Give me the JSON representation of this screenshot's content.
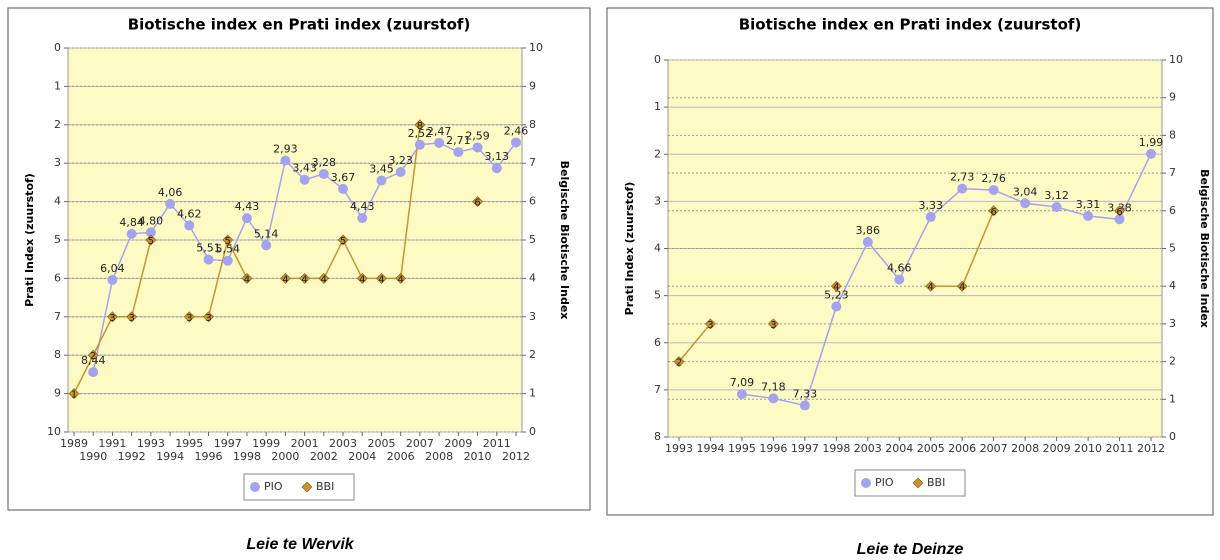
{
  "chart_data": [
    {
      "type": "line",
      "title": "Biotische index en Prati index (zuurstof)",
      "caption": "Leie  te Wervik",
      "categories": [
        "1989",
        "1990",
        "1991",
        "1992",
        "1993",
        "1994",
        "1995",
        "1996",
        "1997",
        "1998",
        "1999",
        "2000",
        "2001",
        "2002",
        "2003",
        "2004",
        "2005",
        "2006",
        "2007",
        "2008",
        "2009",
        "2010",
        "2011",
        "2012"
      ],
      "y_label": "Prati Index (zuurstof)",
      "y2_label": "Belgische Biotische Index",
      "ylim": [
        10,
        0
      ],
      "yticks": [
        0,
        1,
        2,
        3,
        4,
        5,
        6,
        7,
        8,
        9,
        10
      ],
      "y2lim": [
        0,
        10
      ],
      "y2ticks": [
        0,
        1,
        2,
        3,
        4,
        5,
        6,
        7,
        8,
        9,
        10
      ],
      "grid": true,
      "series": [
        {
          "name": "PIO",
          "color": "#a3a3f0",
          "marker": "circle",
          "values": [
            null,
            8.44,
            6.04,
            4.84,
            4.8,
            4.06,
            4.62,
            5.51,
            5.54,
            4.43,
            5.14,
            2.93,
            3.43,
            3.28,
            3.67,
            4.43,
            3.45,
            3.23,
            2.52,
            2.47,
            2.71,
            2.59,
            3.13,
            2.46
          ],
          "value_labels": [
            null,
            "8,44",
            "6,04",
            "4,84",
            "4,80",
            "4,06",
            "4,62",
            "5,51",
            "5,54",
            "4,43",
            "5,14",
            "2,93",
            "3,43",
            "3,28",
            "3,67",
            "4,43",
            "3,45",
            "3,23",
            "2,52",
            "2,47",
            "2,71",
            "2,59",
            "3,13",
            "2,46"
          ]
        },
        {
          "name": "BBI",
          "color": "#c8922e",
          "marker": "diamond",
          "axis": "y2",
          "values": [
            1,
            2,
            3,
            3,
            5,
            null,
            3,
            3,
            5,
            4,
            null,
            4,
            4,
            4,
            5,
            4,
            4,
            4,
            8,
            null,
            null,
            6,
            null,
            null
          ]
        }
      ]
    },
    {
      "type": "line",
      "title": "Biotische index en Prati index (zuurstof)",
      "caption": "Leie te Deinze",
      "categories": [
        "1993",
        "1994",
        "1995",
        "1996",
        "1997",
        "1998",
        "2003",
        "2004",
        "2005",
        "2006",
        "2007",
        "2008",
        "2009",
        "2010",
        "2011",
        "2012"
      ],
      "y_label": "Prati Index (zuurstof)",
      "y2_label": "Belgische Biotische Index",
      "ylim": [
        8,
        0
      ],
      "yticks": [
        0,
        1,
        2,
        3,
        4,
        5,
        6,
        7,
        8
      ],
      "y2lim": [
        0,
        10
      ],
      "y2ticks": [
        0,
        1,
        2,
        3,
        4,
        5,
        6,
        7,
        8,
        9,
        10
      ],
      "grid": true,
      "series": [
        {
          "name": "PIO",
          "color": "#a3a3f0",
          "marker": "circle",
          "values": [
            null,
            null,
            7.09,
            7.18,
            7.33,
            5.23,
            3.86,
            4.66,
            3.33,
            2.73,
            2.76,
            3.04,
            3.12,
            3.31,
            3.38,
            1.99
          ],
          "value_labels": [
            null,
            null,
            "7,09",
            "7,18",
            "7,33",
            "5,23",
            "3,86",
            "4,66",
            "3,33",
            "2,73",
            "2,76",
            "3,04",
            "3,12",
            "3,31",
            "3,38",
            "1,99"
          ]
        },
        {
          "name": "BBI",
          "color": "#c8922e",
          "marker": "diamond",
          "axis": "y2",
          "values": [
            2,
            3,
            null,
            3,
            null,
            4,
            null,
            null,
            4,
            4,
            6,
            null,
            null,
            null,
            6,
            null
          ]
        }
      ]
    }
  ]
}
